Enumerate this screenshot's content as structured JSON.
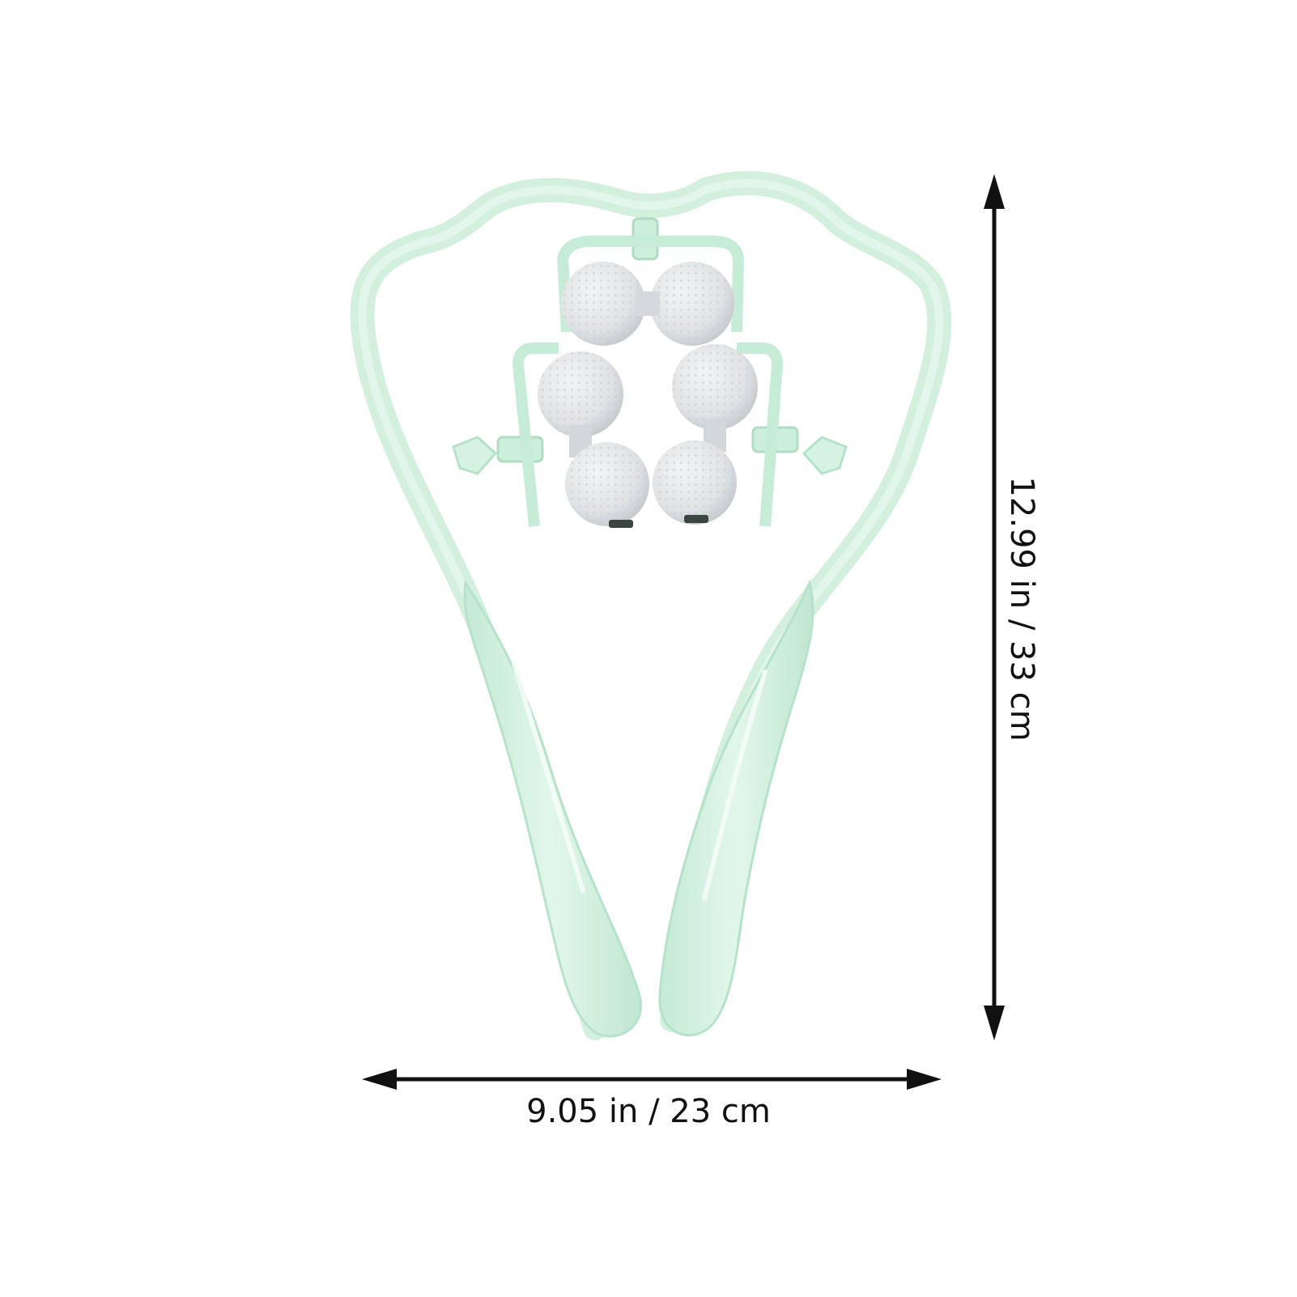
{
  "product": {
    "icon": "neck-massager-roller",
    "colors": {
      "frame": "#d6f2e2",
      "frame_shadow": "#b7e3cc",
      "frame_edge": "#a9d9bf",
      "ball": "#e3e5e6",
      "ball_shadow": "#c4c8cb",
      "arrow": "#111111"
    }
  },
  "dimensions": {
    "width_label": "9.05 in / 23 cm",
    "height_label": "12.99 in / 33 cm"
  }
}
